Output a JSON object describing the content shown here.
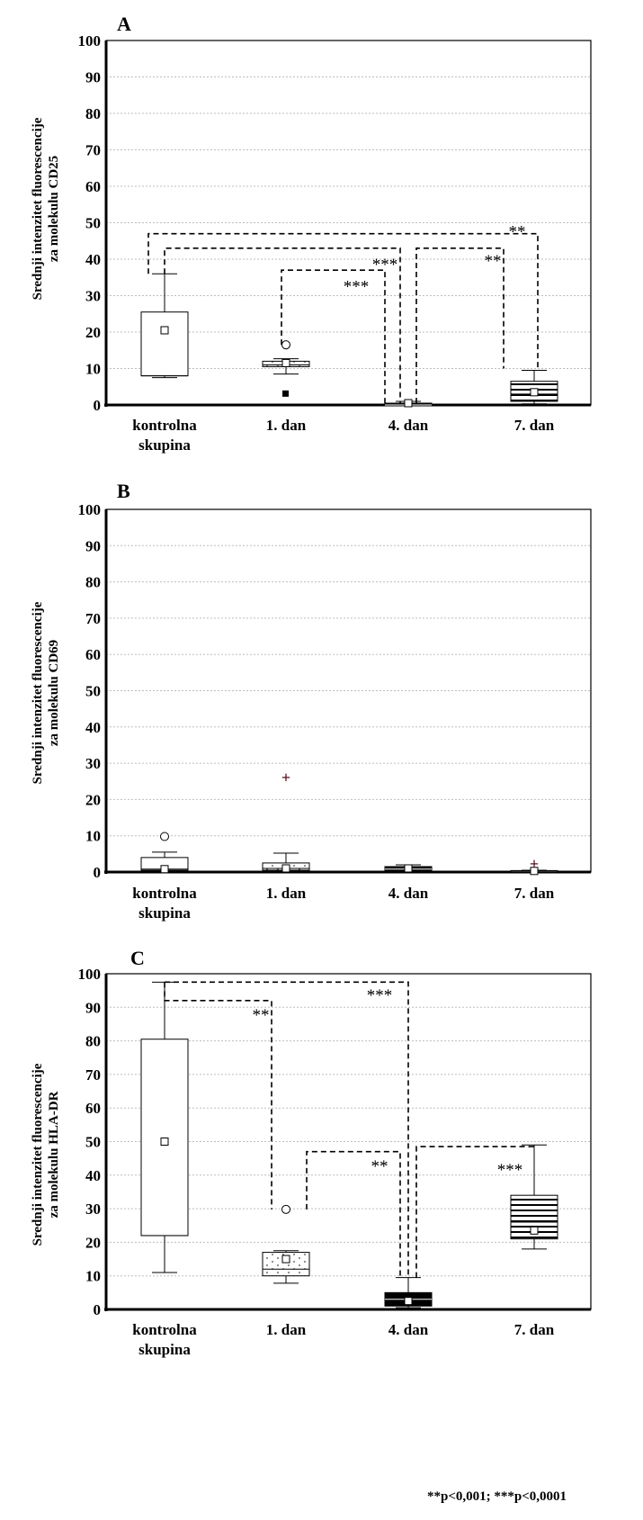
{
  "footnote": "**p<0,001; ***p<0,0001",
  "chart_data": [
    {
      "type": "box",
      "panel_label": "A",
      "ylabel_lines": [
        "Srednji intenzitet fluorescencije",
        "za molekulu CD25"
      ],
      "ylim": [
        0,
        100
      ],
      "yticks": [
        0,
        10,
        20,
        30,
        40,
        50,
        60,
        70,
        80,
        90,
        100
      ],
      "grid": true,
      "categories": [
        [
          "kontrolna",
          "skupina"
        ],
        [
          "1. dan"
        ],
        [
          "4. dan"
        ],
        [
          "7. dan"
        ]
      ],
      "boxes": [
        {
          "whisker_low": 7.5,
          "q1": 8,
          "median": 8,
          "q3": 25.5,
          "whisker_high": 36,
          "mean": 20.5,
          "fill": "none",
          "outliers": [],
          "extremes": []
        },
        {
          "whisker_low": 8.5,
          "q1": 10.5,
          "median": 11,
          "q3": 12,
          "whisker_high": 12.7,
          "mean": 11.5,
          "fill": "dots",
          "outliers": [
            16.5
          ],
          "extremes": [
            3
          ]
        },
        {
          "whisker_low": 0,
          "q1": 0,
          "median": 0,
          "q3": 0.5,
          "whisker_high": 1,
          "mean": 0.5,
          "fill": "solid",
          "outliers": [],
          "extremes": []
        },
        {
          "whisker_low": 0.3,
          "q1": 1,
          "median": 3,
          "q3": 6.5,
          "whisker_high": 9.5,
          "mean": 3.5,
          "fill": "stripes",
          "outliers": [],
          "extremes": []
        }
      ],
      "significance": [
        {
          "from": 0,
          "to": 2,
          "label": "***"
        },
        {
          "from": 0,
          "to": 3,
          "label": "**"
        },
        {
          "from": 1,
          "to": 2,
          "label": "***"
        },
        {
          "from": 2,
          "to": 3,
          "label": "**"
        }
      ]
    },
    {
      "type": "box",
      "panel_label": "B",
      "ylabel_lines": [
        "Srednji intenzitet fluorescencije",
        "za molekulu CD69"
      ],
      "ylim": [
        0,
        100
      ],
      "yticks": [
        0,
        10,
        20,
        30,
        40,
        50,
        60,
        70,
        80,
        90,
        100
      ],
      "grid": true,
      "categories": [
        [
          "kontrolna",
          "skupina"
        ],
        [
          "1. dan"
        ],
        [
          "4. dan"
        ],
        [
          "7. dan"
        ]
      ],
      "boxes": [
        {
          "whisker_low": 0.3,
          "q1": 0.5,
          "median": 0.8,
          "q3": 4,
          "whisker_high": 5.5,
          "mean": 0.8,
          "fill": "none",
          "outliers": [
            9.8
          ],
          "extremes": []
        },
        {
          "whisker_low": 0.2,
          "q1": 0.5,
          "median": 1,
          "q3": 2.5,
          "whisker_high": 5.2,
          "mean": 1,
          "fill": "dots",
          "outliers": [],
          "extremes": [
            26
          ]
        },
        {
          "whisker_low": 0.2,
          "q1": 0.3,
          "median": 0.8,
          "q3": 1.5,
          "whisker_high": 2,
          "mean": 1,
          "fill": "solid",
          "outliers": [],
          "extremes": []
        },
        {
          "whisker_low": 0,
          "q1": 0.1,
          "median": 0.2,
          "q3": 0.4,
          "whisker_high": 0.5,
          "mean": 0.3,
          "fill": "stripes",
          "outliers": [],
          "extremes": [
            2.2
          ]
        }
      ],
      "significance": []
    },
    {
      "type": "box",
      "panel_label": "C",
      "ylabel_lines": [
        "Srednji intenzitet fluorescencije",
        "za molekulu HLA-DR"
      ],
      "ylim": [
        0,
        100
      ],
      "yticks": [
        0,
        10,
        20,
        30,
        40,
        50,
        60,
        70,
        80,
        90,
        100
      ],
      "grid": true,
      "categories": [
        [
          "kontrolna",
          "skupina"
        ],
        [
          "1. dan"
        ],
        [
          "4. dan"
        ],
        [
          "7. dan"
        ]
      ],
      "boxes": [
        {
          "whisker_low": 11,
          "q1": 22,
          "median": 22,
          "q3": 80.5,
          "whisker_high": 97.5,
          "mean": 50,
          "fill": "none",
          "outliers": [],
          "extremes": []
        },
        {
          "whisker_low": 7.8,
          "q1": 10,
          "median": 12,
          "q3": 17,
          "whisker_high": 17.5,
          "mean": 15,
          "fill": "dots",
          "outliers": [
            29.8
          ],
          "extremes": []
        },
        {
          "whisker_low": 0.5,
          "q1": 1,
          "median": 3,
          "q3": 5,
          "whisker_high": 9.5,
          "mean": 2.5,
          "fill": "solid",
          "outliers": [],
          "extremes": []
        },
        {
          "whisker_low": 18,
          "q1": 21,
          "median": 26,
          "q3": 34,
          "whisker_high": 49,
          "mean": 23.5,
          "fill": "stripes",
          "outliers": [],
          "extremes": []
        }
      ],
      "significance": [
        {
          "from": 0,
          "to": 1,
          "label": "**"
        },
        {
          "from": 0,
          "to": 2,
          "label": "***"
        },
        {
          "from": 1,
          "to": 2,
          "label": "**"
        },
        {
          "from": 2,
          "to": 3,
          "label": "***"
        }
      ]
    }
  ]
}
